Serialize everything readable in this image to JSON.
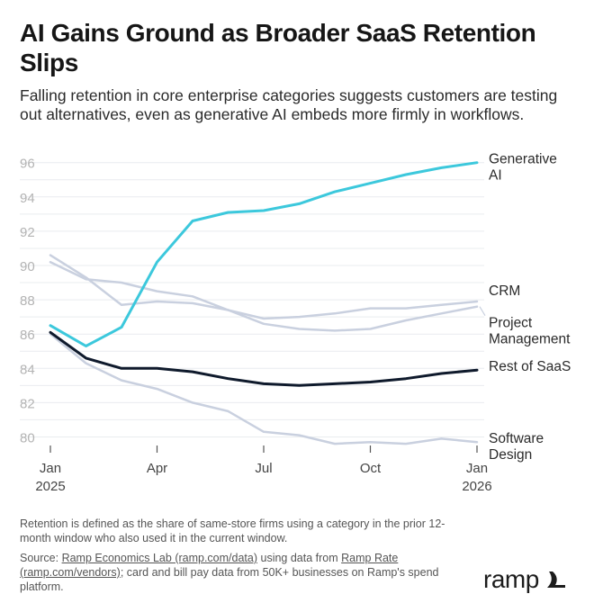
{
  "header": {
    "title": "AI Gains Ground as Broader SaaS Retention Slips",
    "subtitle": "Falling retention in core enterprise categories suggests customers are testing out alternatives, even as generative AI embeds more firmly in workflows."
  },
  "footer": {
    "note": "Retention is defined as the share of same-store firms using a category in the prior 12-month window who also used it in the current window.",
    "source_prefix": "Source: ",
    "source_link1": "Ramp Economics Lab (ramp.com/data)",
    "source_mid": " using data from ",
    "source_link2": "Ramp Rate",
    "source_link3": "(ramp.com/vendors)",
    "source_suffix": "; card and bill pay data from 50K+ businesses on Ramp's spend platform.",
    "logo_text": "ramp",
    "logo_icon": "ramp-wing-icon"
  },
  "chart_data": {
    "type": "line",
    "x": [
      0,
      1,
      2,
      3,
      4,
      5,
      6,
      7,
      8,
      9,
      10,
      11,
      12
    ],
    "x_ticks": [
      {
        "x": 0,
        "lines": [
          "Jan",
          "2025"
        ]
      },
      {
        "x": 3,
        "lines": [
          "Apr"
        ]
      },
      {
        "x": 6,
        "lines": [
          "Jul"
        ]
      },
      {
        "x": 9,
        "lines": [
          "Oct"
        ]
      },
      {
        "x": 12,
        "lines": [
          "Jan",
          "2026"
        ]
      }
    ],
    "y_ticks": [
      80,
      82,
      84,
      86,
      88,
      90,
      92,
      94,
      96
    ],
    "ylim": [
      79.5,
      96.3
    ],
    "grid": true,
    "series": [
      {
        "name": "Software Design",
        "label_lines": [
          "Software",
          "Design"
        ],
        "color": "#c9d0df",
        "width": 2.5,
        "values": [
          86.0,
          84.3,
          83.3,
          82.8,
          82.0,
          81.5,
          80.3,
          80.1,
          79.6,
          79.7,
          79.6,
          79.9,
          79.7
        ]
      },
      {
        "name": "Project Management",
        "label_lines": [
          "Project",
          "Management"
        ],
        "color": "#c9d0df",
        "width": 2.5,
        "values": [
          90.6,
          89.3,
          87.7,
          87.9,
          87.8,
          87.4,
          86.6,
          86.3,
          86.2,
          86.3,
          86.8,
          87.2,
          87.6
        ]
      },
      {
        "name": "CRM",
        "label_lines": [
          "CRM"
        ],
        "color": "#c9d0df",
        "width": 2.5,
        "values": [
          90.2,
          89.2,
          89.0,
          88.5,
          88.2,
          87.4,
          86.9,
          87.0,
          87.2,
          87.5,
          87.5,
          87.7,
          87.9
        ]
      },
      {
        "name": "Rest of SaaS",
        "label_lines": [
          "Rest of SaaS"
        ],
        "color": "#0f1a2c",
        "width": 3,
        "values": [
          86.1,
          84.6,
          84.0,
          84.0,
          83.8,
          83.4,
          83.1,
          83.0,
          83.1,
          83.2,
          83.4,
          83.7,
          83.9
        ]
      },
      {
        "name": "Generative AI",
        "label_lines": [
          "Generative",
          "AI"
        ],
        "color": "#3cc8dc",
        "width": 3,
        "values": [
          86.5,
          85.3,
          86.4,
          90.2,
          92.6,
          93.1,
          93.2,
          93.6,
          94.3,
          94.8,
          95.3,
          95.7,
          96.0
        ]
      }
    ]
  }
}
